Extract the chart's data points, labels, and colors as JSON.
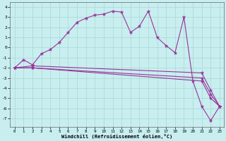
{
  "bg_color": "#c8eef0",
  "grid_color": "#a8d8d0",
  "line_color": "#993399",
  "xlabel": "Windchill (Refroidissement éolien,°C)",
  "x_ticks": [
    0,
    1,
    2,
    3,
    4,
    5,
    6,
    7,
    8,
    9,
    10,
    11,
    12,
    13,
    14,
    15,
    16,
    17,
    18,
    19,
    20,
    21,
    22,
    23
  ],
  "y_ticks": [
    4,
    3,
    2,
    1,
    0,
    -1,
    -2,
    -3,
    -4,
    -5,
    -6,
    -7
  ],
  "ylim": [
    -7.8,
    4.5
  ],
  "xlim": [
    -0.5,
    23.5
  ],
  "main_x": [
    0,
    1,
    2,
    3,
    4,
    5,
    6,
    7,
    8,
    9,
    10,
    11,
    12,
    13,
    14,
    15,
    16,
    17,
    18,
    19,
    20,
    21,
    22,
    23
  ],
  "main_y": [
    -2,
    -1.2,
    -1.7,
    -0.6,
    -0.2,
    0.5,
    1.5,
    2.5,
    2.9,
    3.2,
    3.3,
    3.6,
    3.5,
    1.5,
    2.1,
    3.6,
    1.0,
    0.2,
    -0.5,
    3.0,
    -3.3,
    -5.8,
    -7.2,
    -5.8
  ],
  "line2_x": [
    0,
    2,
    21,
    22,
    23
  ],
  "line2_y": [
    -2,
    -2,
    -3.3,
    -5.0,
    -5.8
  ],
  "line3_x": [
    0,
    2,
    21,
    22,
    23
  ],
  "line3_y": [
    -2,
    -2,
    -3.0,
    -4.6,
    -5.8
  ],
  "line4_x": [
    0,
    2,
    21,
    22,
    23
  ],
  "line4_y": [
    -2,
    -1.8,
    -2.5,
    -4.2,
    -5.8
  ]
}
